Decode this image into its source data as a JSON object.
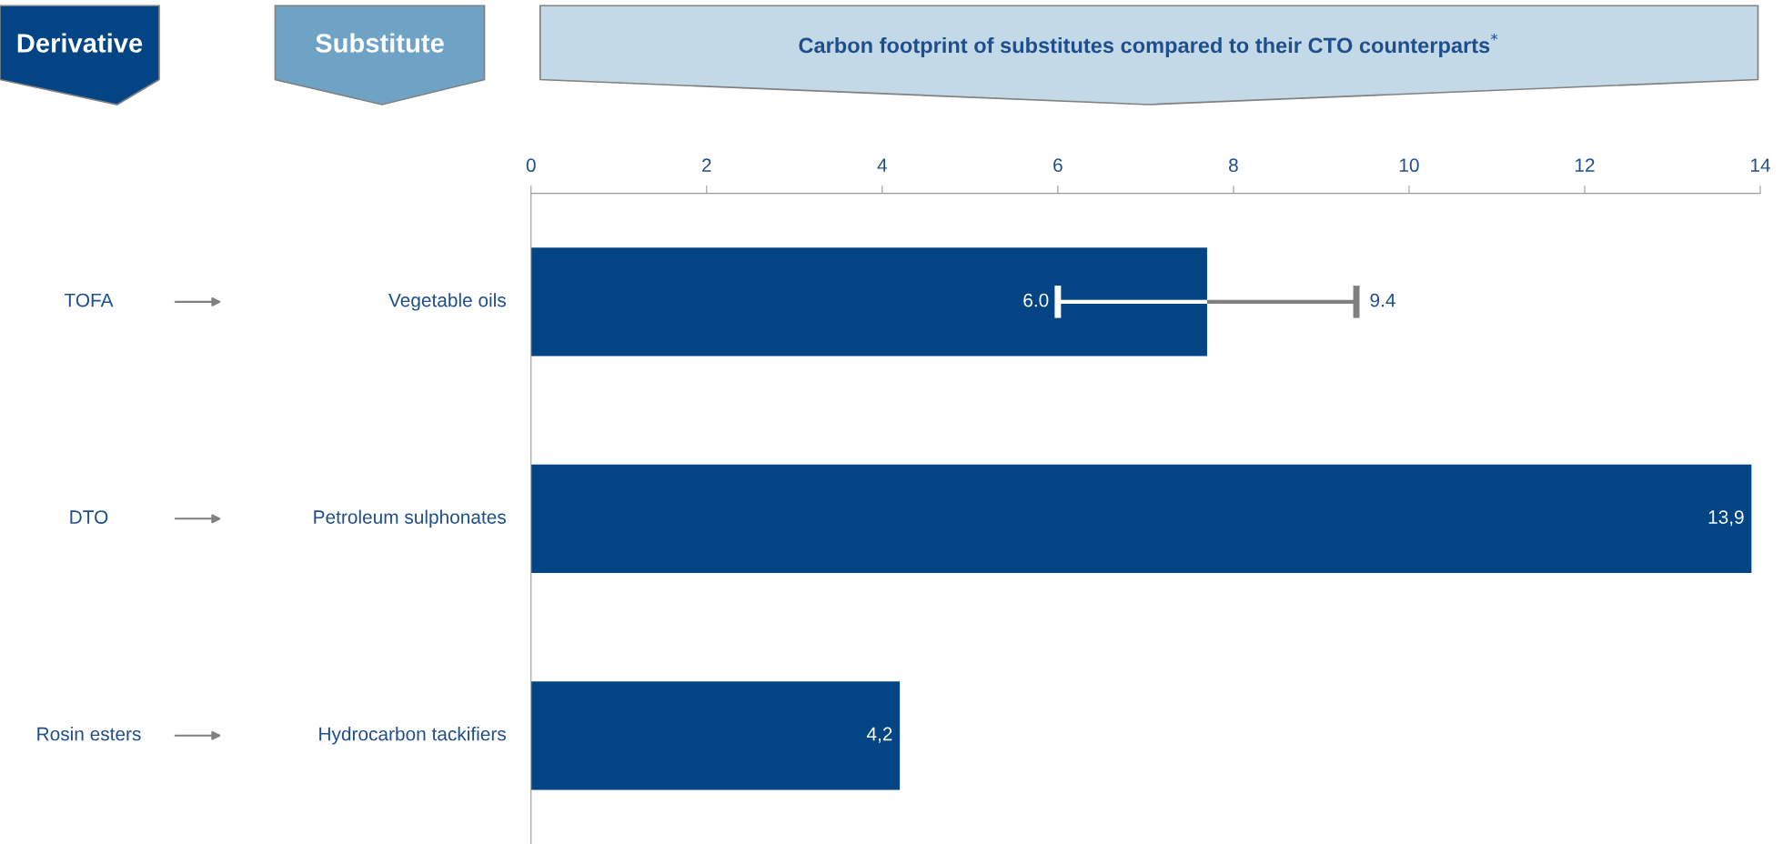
{
  "chart_data": {
    "type": "bar",
    "orientation": "horizontal",
    "title": "Carbon footprint of substitutes compared to their CTO counterparts$^{*}$",
    "annotations": [
      "Derivative",
      "Substitute",
      {
        "text": "6.0",
        "x": 6.0,
        "y": "Vegetable oils"
      },
      {
        "text": "9.4",
        "x": 9.4,
        "y": "Vegetable oils"
      }
    ],
    "categories": [
      "Vegetable oils",
      "Petroleum sulphonates",
      "Hydrocarbon tackifiers"
    ],
    "y2_categories": [
      "TOFA",
      "DTO",
      "Rosin esters"
    ],
    "values": [
      7.7,
      13.9,
      4.2
    ],
    "errors": [
      [
        6.0,
        9.4
      ],
      null,
      null
    ],
    "value_labels": [
      null,
      "13,9",
      "4,2"
    ],
    "color": "#034584",
    "xlim": [
      0,
      14
    ],
    "xticks": [
      0,
      2,
      4,
      6,
      8,
      10,
      12,
      14
    ],
    "grid": false,
    "legend": false
  }
}
